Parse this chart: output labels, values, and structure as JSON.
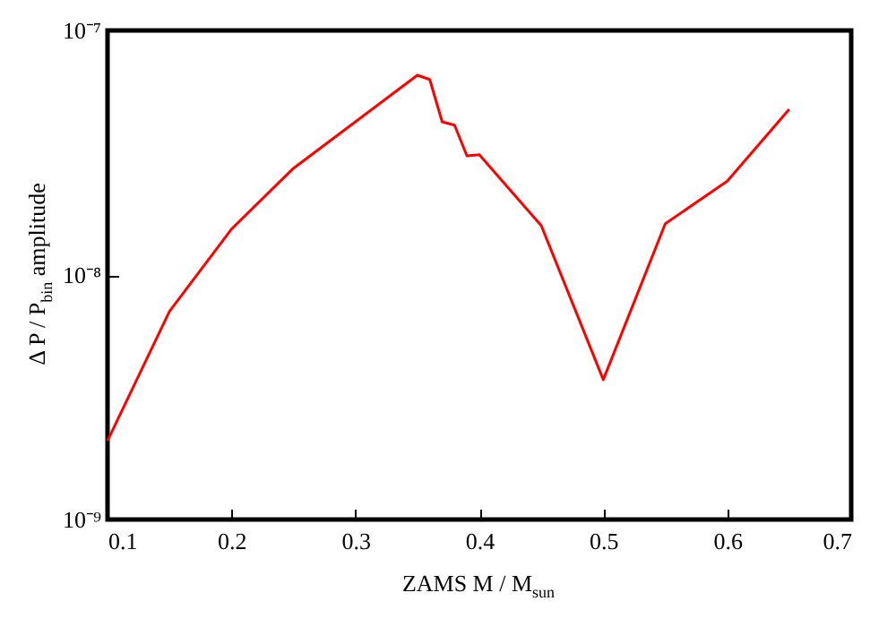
{
  "chart_data": {
    "type": "line",
    "xlabel": "ZAMS M / M$_{sun}$",
    "ylabel": "Δ P / P$_{bin}$ amplitude",
    "x": [
      0.1,
      0.15,
      0.2,
      0.25,
      0.35,
      0.36,
      0.37,
      0.38,
      0.39,
      0.4,
      0.45,
      0.5,
      0.55,
      0.6,
      0.65
    ],
    "series": [
      {
        "color": "#ff0000",
        "values": [
          2.1e-09,
          7.1e-09,
          1.54e-08,
          2.73e-08,
          6.56e-08,
          6.3e-08,
          4.23e-08,
          4.1e-08,
          3.07e-08,
          3.1e-08,
          1.59e-08,
          3.73e-09,
          1.62e-08,
          2.42e-08,
          4.76e-08
        ]
      }
    ],
    "xlim": [
      0.1,
      0.7
    ],
    "xticks": [
      0.1,
      0.2,
      0.3,
      0.4,
      0.5,
      0.6,
      0.7
    ],
    "ylim": [
      1e-09,
      1e-07
    ],
    "yticks": [
      {
        "value": 1e-09,
        "label": "10⁻⁹"
      },
      {
        "value": 1e-08,
        "label": "10⁻⁸"
      },
      {
        "value": 1e-07,
        "label": "10⁻⁷"
      }
    ],
    "log": "y",
    "grid": false,
    "marker": "none",
    "line_style": "solid"
  }
}
